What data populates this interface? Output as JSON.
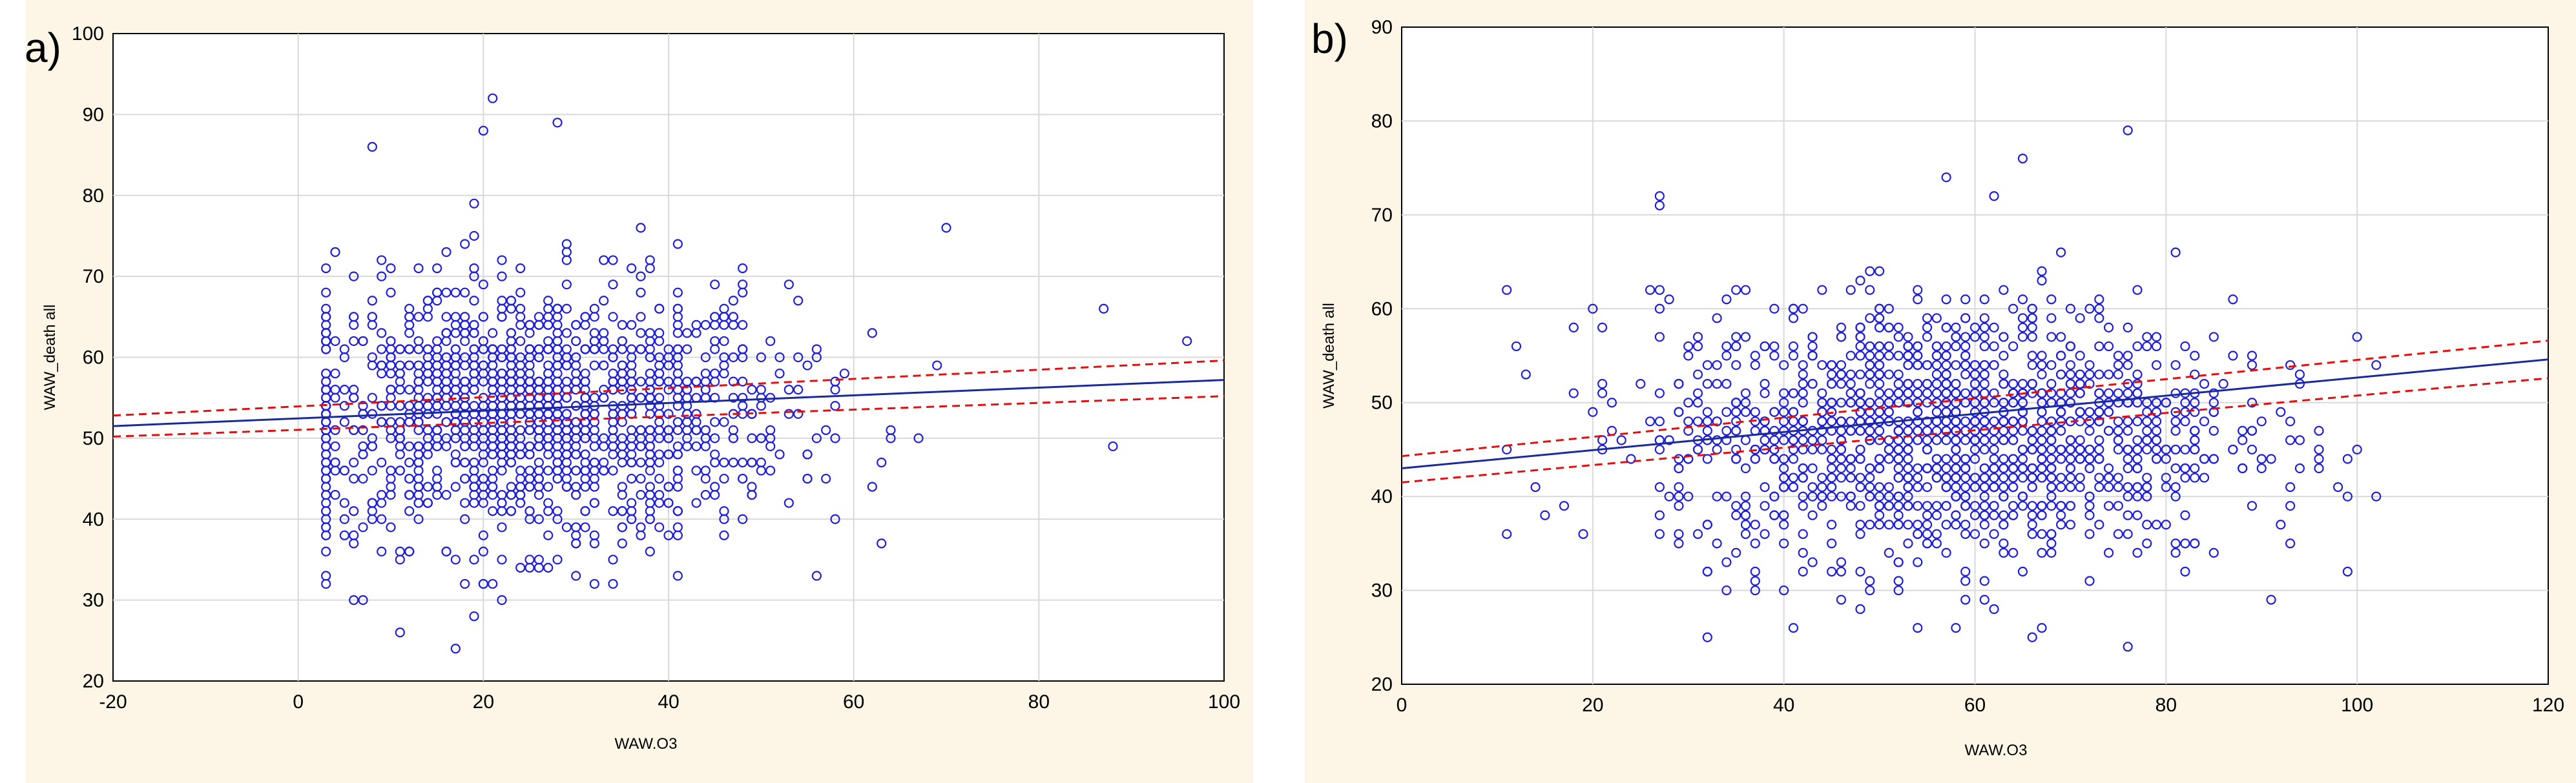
{
  "panels": [
    {
      "letter": "a)",
      "xlabel": "WAW.O3",
      "ylabel": "WAW_death all"
    },
    {
      "letter": "b)",
      "xlabel": "WAW.O3",
      "ylabel": "WAW_death all"
    }
  ],
  "colors": {
    "points": "#1f1fd6",
    "fit": "#1a2a9a",
    "ci": "#e01010",
    "grid": "#d9d9d9",
    "background": "#fdf6e6"
  },
  "chart_data": [
    {
      "type": "scatter",
      "title": "",
      "xlabel": "WAW.O3",
      "ylabel": "WAW_death all",
      "xlim": [
        -20,
        100
      ],
      "ylim": [
        20,
        100
      ],
      "xticks": [
        -20,
        0,
        20,
        40,
        60,
        80,
        100
      ],
      "yticks": [
        20,
        30,
        40,
        50,
        60,
        70,
        80,
        90,
        100
      ],
      "grid": true,
      "point_distribution": {
        "x_center": 25,
        "x_spread": 14,
        "x_range": [
          3,
          96
        ],
        "y_center": 53,
        "y_spread": 8,
        "n": 1400
      },
      "outliers": [
        {
          "x": 21,
          "y": 92
        },
        {
          "x": 20,
          "y": 88
        },
        {
          "x": 28,
          "y": 89
        },
        {
          "x": 8,
          "y": 86
        },
        {
          "x": 96,
          "y": 62
        },
        {
          "x": 88,
          "y": 49
        },
        {
          "x": 87,
          "y": 66
        },
        {
          "x": 70,
          "y": 76
        },
        {
          "x": 3,
          "y": 32
        },
        {
          "x": 20,
          "y": 32
        },
        {
          "x": 34,
          "y": 32
        }
      ],
      "fit_line": {
        "x": [
          -20,
          100
        ],
        "y": [
          51.5,
          57.2
        ]
      },
      "ci_upper": {
        "x": [
          -20,
          100
        ],
        "y": [
          52.8,
          59.6
        ]
      },
      "ci_lower": {
        "x": [
          -20,
          100
        ],
        "y": [
          50.2,
          55.2
        ]
      }
    },
    {
      "type": "scatter",
      "title": "",
      "xlabel": "WAW.O3",
      "ylabel": "WAW_death all",
      "xlim": [
        0,
        120
      ],
      "ylim": [
        20,
        90
      ],
      "xticks": [
        0,
        20,
        40,
        60,
        80,
        100,
        120
      ],
      "yticks": [
        20,
        30,
        40,
        50,
        60,
        70,
        80,
        90
      ],
      "grid": true,
      "point_distribution": {
        "x_center": 57,
        "x_spread": 15,
        "x_range": [
          11,
          102
        ],
        "y_center": 47,
        "y_spread": 7,
        "n": 1400
      },
      "outliers": [
        {
          "x": 76,
          "y": 79
        },
        {
          "x": 65,
          "y": 76
        },
        {
          "x": 57,
          "y": 74
        },
        {
          "x": 32,
          "y": 25
        },
        {
          "x": 76,
          "y": 24
        },
        {
          "x": 102,
          "y": 54
        },
        {
          "x": 100,
          "y": 57
        },
        {
          "x": 11,
          "y": 45
        },
        {
          "x": 27,
          "y": 71
        }
      ],
      "fit_line": {
        "x": [
          0,
          120
        ],
        "y": [
          43.0,
          54.6
        ]
      },
      "ci_upper": {
        "x": [
          0,
          120
        ],
        "y": [
          44.3,
          56.6
        ]
      },
      "ci_lower": {
        "x": [
          0,
          120
        ],
        "y": [
          41.5,
          52.6
        ]
      }
    }
  ]
}
